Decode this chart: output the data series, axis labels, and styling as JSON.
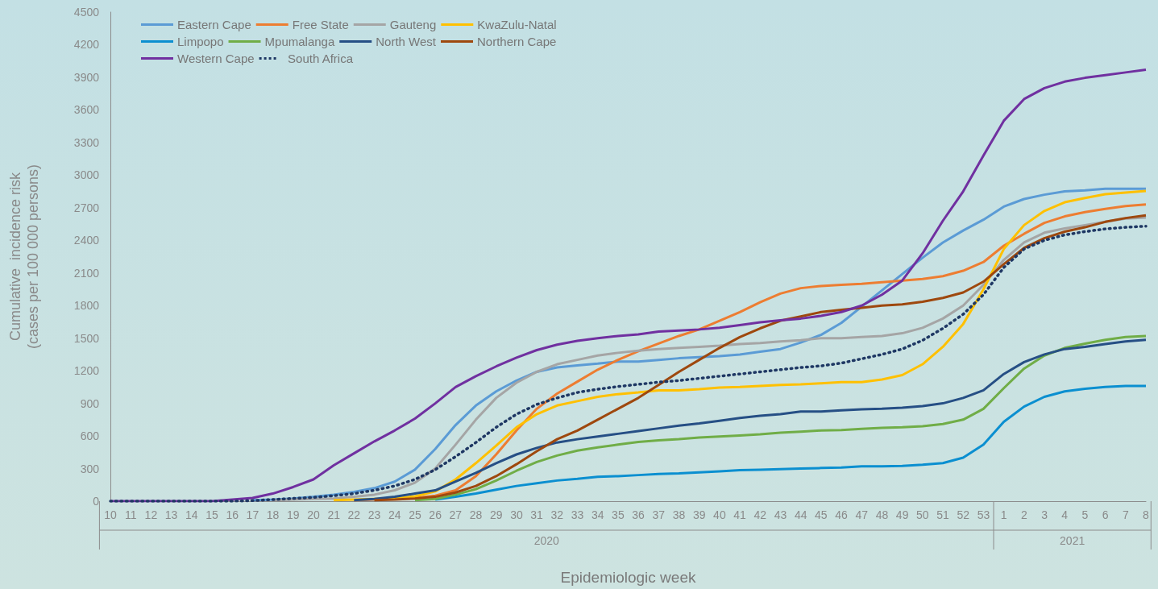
{
  "chart_data": {
    "type": "line",
    "xlabel": "Epidemiologic week",
    "ylabel": "Cumulative  incidence risk\n(cases per 100 000 persons)",
    "categories": [
      "10",
      "11",
      "12",
      "13",
      "14",
      "15",
      "16",
      "17",
      "18",
      "19",
      "20",
      "21",
      "22",
      "23",
      "24",
      "25",
      "26",
      "27",
      "28",
      "29",
      "30",
      "31",
      "32",
      "33",
      "34",
      "35",
      "36",
      "37",
      "38",
      "39",
      "40",
      "41",
      "42",
      "43",
      "44",
      "45",
      "46",
      "47",
      "48",
      "49",
      "50",
      "51",
      "52",
      "53",
      "1",
      "2",
      "3",
      "4",
      "5",
      "6",
      "7",
      "8"
    ],
    "ylim": [
      0,
      4500
    ],
    "yticks": [
      0,
      300,
      600,
      900,
      1200,
      1500,
      1800,
      2100,
      2400,
      2700,
      3000,
      3300,
      3600,
      3900,
      4200,
      4500
    ],
    "grid": false,
    "legend": "top left",
    "marker": "none",
    "annotations": [
      "2020",
      "2021"
    ],
    "series": [
      {
        "name": "Eastern Cape",
        "color": "#5b9bd5",
        "values": [
          null,
          null,
          null,
          null,
          null,
          null,
          null,
          10,
          15,
          25,
          40,
          60,
          85,
          120,
          180,
          290,
          480,
          700,
          880,
          1010,
          1110,
          1190,
          1230,
          1250,
          1265,
          1285,
          1285,
          1300,
          1315,
          1325,
          1335,
          1350,
          1375,
          1400,
          1460,
          1530,
          1640,
          1790,
          1940,
          2090,
          2240,
          2380,
          2490,
          2590,
          2710,
          2780,
          2820,
          2850,
          2860,
          2875,
          2875,
          2875
        ]
      },
      {
        "name": "Free State",
        "color": "#ed7d31",
        "values": [
          null,
          null,
          null,
          null,
          null,
          null,
          null,
          null,
          null,
          null,
          null,
          null,
          10,
          15,
          20,
          30,
          50,
          100,
          230,
          430,
          650,
          850,
          990,
          1100,
          1210,
          1300,
          1380,
          1450,
          1520,
          1580,
          1660,
          1740,
          1830,
          1910,
          1960,
          1980,
          1990,
          2000,
          2015,
          2030,
          2045,
          2070,
          2120,
          2200,
          2350,
          2460,
          2560,
          2620,
          2660,
          2690,
          2715,
          2730
        ]
      },
      {
        "name": "Gauteng",
        "color": "#a5a5a5",
        "values": [
          null,
          null,
          null,
          null,
          null,
          null,
          null,
          null,
          10,
          15,
          20,
          25,
          40,
          60,
          100,
          170,
          300,
          520,
          750,
          950,
          1090,
          1190,
          1260,
          1300,
          1340,
          1365,
          1385,
          1400,
          1410,
          1420,
          1430,
          1445,
          1455,
          1470,
          1480,
          1500,
          1500,
          1510,
          1520,
          1545,
          1595,
          1680,
          1800,
          1990,
          2220,
          2380,
          2470,
          2510,
          2540,
          2570,
          2600,
          2610
        ]
      },
      {
        "name": "KwaZulu-Natal",
        "color": "#ffc000",
        "values": [
          null,
          null,
          null,
          null,
          null,
          null,
          null,
          null,
          null,
          null,
          null,
          10,
          15,
          20,
          25,
          45,
          90,
          200,
          350,
          510,
          680,
          800,
          880,
          920,
          960,
          985,
          1000,
          1020,
          1020,
          1030,
          1045,
          1050,
          1060,
          1070,
          1075,
          1085,
          1095,
          1095,
          1120,
          1160,
          1260,
          1420,
          1630,
          1950,
          2320,
          2540,
          2670,
          2750,
          2790,
          2825,
          2840,
          2855
        ]
      },
      {
        "name": "Limpopo",
        "color": "#0b8fd0",
        "values": [
          null,
          null,
          null,
          null,
          null,
          null,
          null,
          null,
          null,
          null,
          null,
          null,
          null,
          null,
          null,
          null,
          15,
          40,
          70,
          105,
          140,
          165,
          190,
          205,
          225,
          230,
          240,
          250,
          255,
          265,
          275,
          285,
          290,
          295,
          300,
          305,
          310,
          320,
          320,
          325,
          335,
          350,
          400,
          520,
          730,
          870,
          960,
          1010,
          1035,
          1050,
          1060,
          1060
        ]
      },
      {
        "name": "Mpumalanga",
        "color": "#70ad47",
        "values": [
          null,
          null,
          null,
          null,
          null,
          null,
          null,
          null,
          null,
          null,
          null,
          null,
          null,
          null,
          null,
          10,
          20,
          60,
          110,
          190,
          280,
          360,
          420,
          465,
          495,
          520,
          545,
          560,
          570,
          585,
          595,
          605,
          615,
          630,
          640,
          650,
          655,
          665,
          675,
          680,
          690,
          710,
          750,
          850,
          1040,
          1220,
          1340,
          1410,
          1450,
          1485,
          1510,
          1520
        ]
      },
      {
        "name": "North West",
        "color": "#264f85",
        "values": [
          null,
          null,
          null,
          null,
          null,
          null,
          null,
          null,
          null,
          null,
          null,
          null,
          10,
          20,
          40,
          70,
          100,
          180,
          260,
          350,
          430,
          490,
          540,
          570,
          595,
          620,
          645,
          670,
          695,
          715,
          740,
          765,
          785,
          800,
          825,
          825,
          835,
          845,
          850,
          860,
          875,
          900,
          950,
          1020,
          1170,
          1280,
          1350,
          1400,
          1420,
          1445,
          1470,
          1485
        ]
      },
      {
        "name": "Northern Cape",
        "color": "#9e480e",
        "values": [
          null,
          null,
          null,
          null,
          null,
          null,
          null,
          null,
          null,
          null,
          null,
          null,
          null,
          10,
          15,
          25,
          40,
          80,
          140,
          230,
          340,
          460,
          570,
          650,
          750,
          850,
          950,
          1070,
          1190,
          1300,
          1410,
          1510,
          1590,
          1660,
          1700,
          1740,
          1760,
          1780,
          1800,
          1810,
          1835,
          1870,
          1920,
          2020,
          2180,
          2330,
          2420,
          2480,
          2520,
          2570,
          2605,
          2630
        ]
      },
      {
        "name": "Western Cape",
        "color": "#7030a0",
        "values": [
          0,
          0,
          0,
          0,
          0,
          0,
          15,
          30,
          70,
          130,
          200,
          330,
          440,
          550,
          650,
          760,
          900,
          1050,
          1150,
          1240,
          1320,
          1390,
          1440,
          1475,
          1500,
          1520,
          1535,
          1560,
          1570,
          1580,
          1595,
          1620,
          1645,
          1665,
          1680,
          1705,
          1740,
          1800,
          1900,
          2030,
          2280,
          2580,
          2850,
          3180,
          3500,
          3700,
          3800,
          3860,
          3895,
          3920,
          3945,
          3970
        ]
      },
      {
        "name": "South Africa",
        "color": "#1f3864",
        "line_style": "dotted",
        "values": [
          0,
          0,
          0,
          0,
          0,
          0,
          0,
          5,
          15,
          25,
          35,
          50,
          70,
          100,
          140,
          200,
          290,
          410,
          540,
          680,
          800,
          890,
          950,
          1000,
          1030,
          1055,
          1075,
          1095,
          1110,
          1130,
          1150,
          1170,
          1190,
          1210,
          1230,
          1245,
          1270,
          1310,
          1350,
          1400,
          1480,
          1590,
          1720,
          1900,
          2150,
          2320,
          2400,
          2450,
          2480,
          2505,
          2520,
          2530
        ]
      }
    ]
  }
}
